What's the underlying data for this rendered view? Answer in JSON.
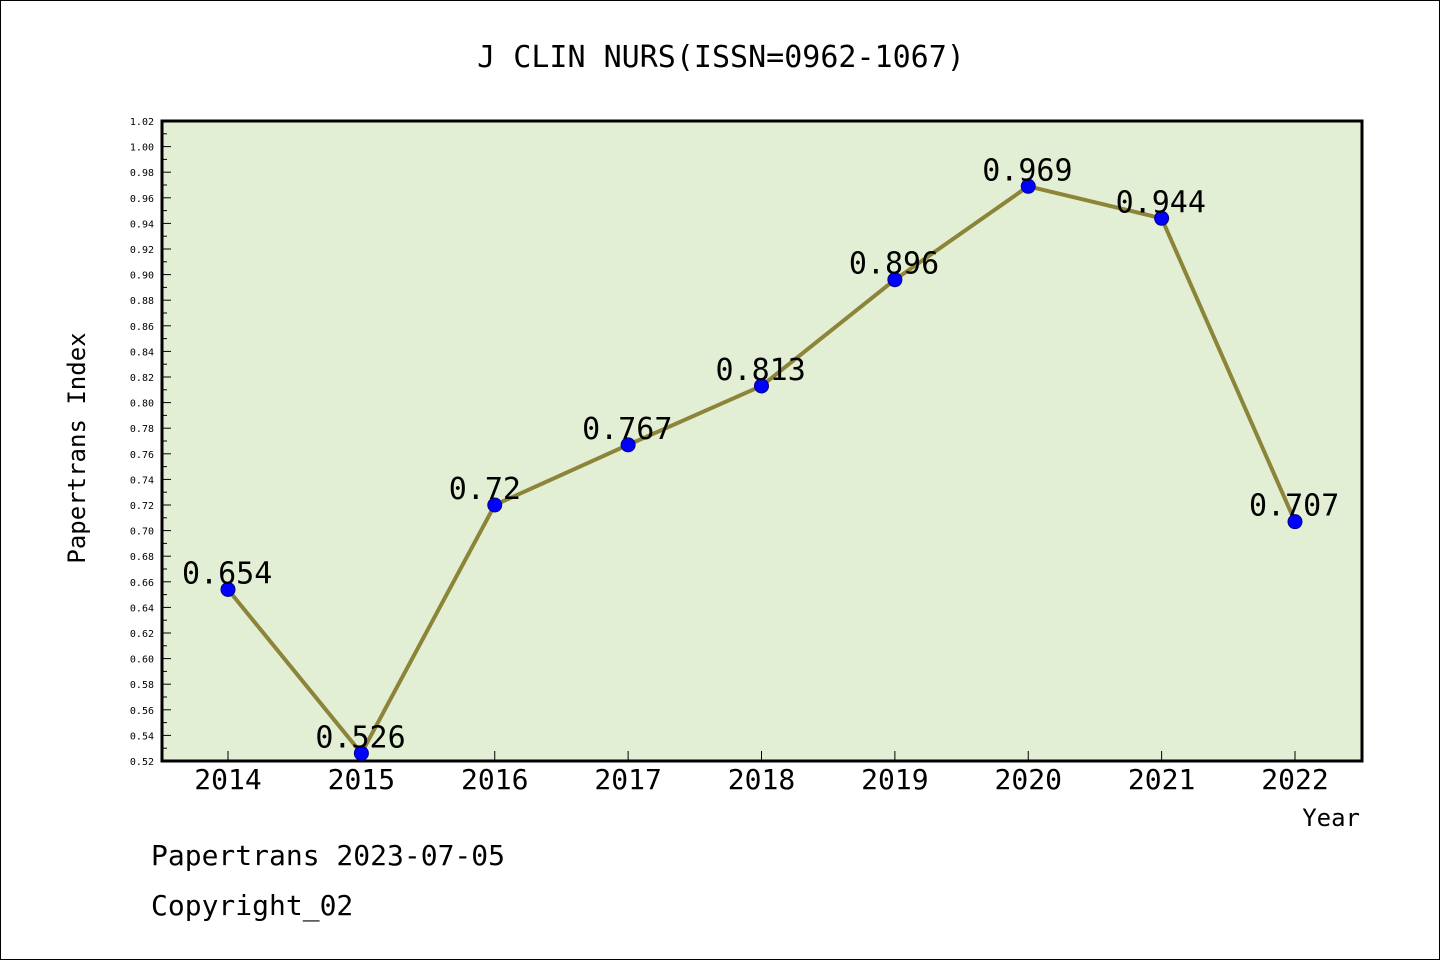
{
  "chart_data": {
    "type": "line",
    "title": "J CLIN NURS(ISSN=0962-1067)",
    "xlabel": "Year",
    "ylabel": "Papertrans Index",
    "categories": [
      "2014",
      "2015",
      "2016",
      "2017",
      "2018",
      "2019",
      "2020",
      "2021",
      "2022"
    ],
    "series": [
      {
        "values": [
          0.654,
          0.526,
          0.72,
          0.767,
          0.813,
          0.896,
          0.969,
          0.944,
          0.707
        ],
        "labels": [
          "0.654",
          "0.526",
          "0.72",
          "0.767",
          "0.813",
          "0.896",
          "0.969",
          "0.944",
          "0.707"
        ]
      }
    ],
    "ylim": [
      0.52,
      1.02
    ],
    "ytick_step": 0.02,
    "grid": false,
    "colors": {
      "plot_background": "#e2efd4",
      "line": "#8c8438",
      "marker": "#0000ff",
      "marker_edge": "#00008b"
    }
  },
  "footer": {
    "date_line": "Papertrans 2023-07-05",
    "copyright": "Copyright_02"
  }
}
